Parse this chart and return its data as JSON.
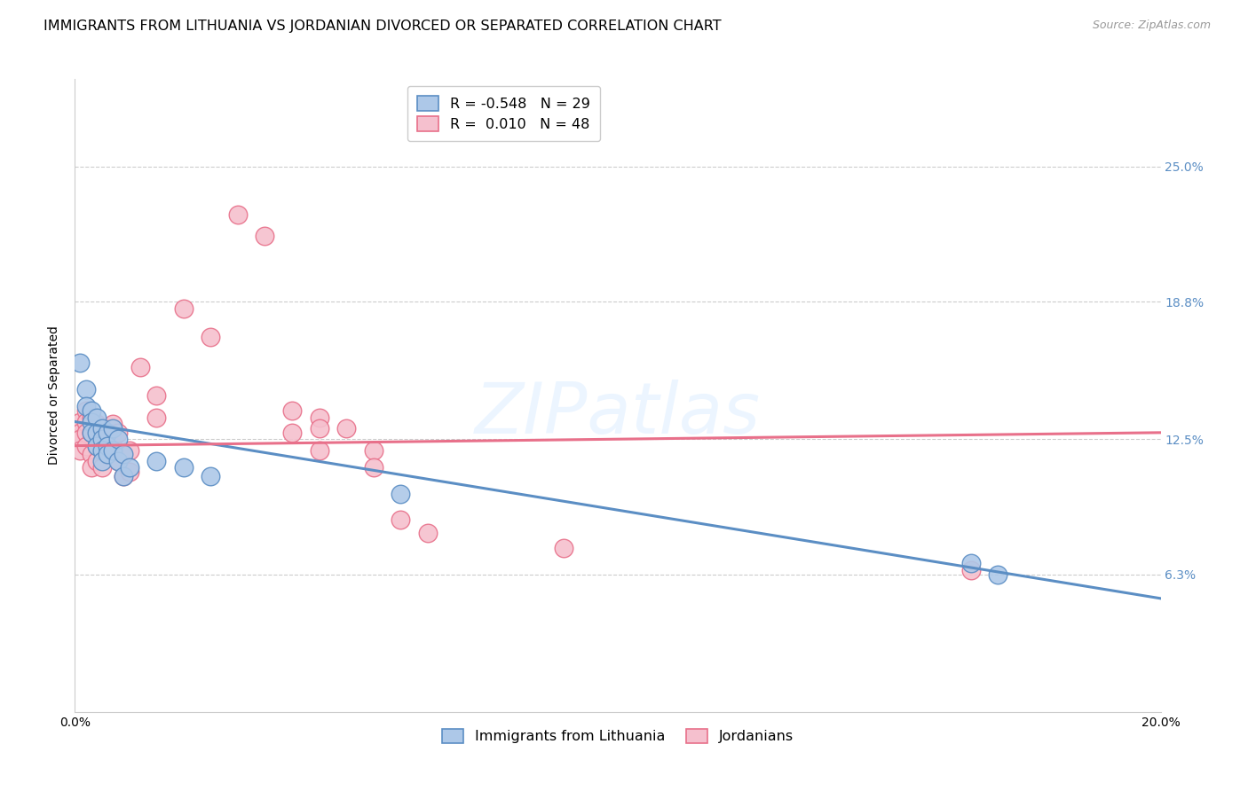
{
  "title": "IMMIGRANTS FROM LITHUANIA VS JORDANIAN DIVORCED OR SEPARATED CORRELATION CHART",
  "source": "Source: ZipAtlas.com",
  "ylabel": "Divorced or Separated",
  "ytick_labels": [
    "6.3%",
    "12.5%",
    "18.8%",
    "25.0%"
  ],
  "ytick_values": [
    0.063,
    0.125,
    0.188,
    0.25
  ],
  "xmin": 0.0,
  "xmax": 0.2,
  "ymin": 0.0,
  "ymax": 0.29,
  "blue_scatter": [
    [
      0.001,
      0.16
    ],
    [
      0.002,
      0.148
    ],
    [
      0.002,
      0.14
    ],
    [
      0.003,
      0.138
    ],
    [
      0.003,
      0.133
    ],
    [
      0.003,
      0.128
    ],
    [
      0.004,
      0.135
    ],
    [
      0.004,
      0.128
    ],
    [
      0.004,
      0.122
    ],
    [
      0.005,
      0.13
    ],
    [
      0.005,
      0.125
    ],
    [
      0.005,
      0.12
    ],
    [
      0.005,
      0.115
    ],
    [
      0.006,
      0.128
    ],
    [
      0.006,
      0.122
    ],
    [
      0.006,
      0.118
    ],
    [
      0.007,
      0.13
    ],
    [
      0.007,
      0.12
    ],
    [
      0.008,
      0.125
    ],
    [
      0.008,
      0.115
    ],
    [
      0.009,
      0.118
    ],
    [
      0.009,
      0.108
    ],
    [
      0.01,
      0.112
    ],
    [
      0.015,
      0.115
    ],
    [
      0.02,
      0.112
    ],
    [
      0.025,
      0.108
    ],
    [
      0.06,
      0.1
    ],
    [
      0.165,
      0.068
    ],
    [
      0.17,
      0.063
    ]
  ],
  "pink_scatter": [
    [
      0.001,
      0.133
    ],
    [
      0.001,
      0.128
    ],
    [
      0.001,
      0.125
    ],
    [
      0.001,
      0.12
    ],
    [
      0.002,
      0.138
    ],
    [
      0.002,
      0.133
    ],
    [
      0.002,
      0.128
    ],
    [
      0.002,
      0.122
    ],
    [
      0.003,
      0.135
    ],
    [
      0.003,
      0.128
    ],
    [
      0.003,
      0.118
    ],
    [
      0.003,
      0.112
    ],
    [
      0.004,
      0.132
    ],
    [
      0.004,
      0.128
    ],
    [
      0.004,
      0.122
    ],
    [
      0.004,
      0.115
    ],
    [
      0.005,
      0.128
    ],
    [
      0.005,
      0.12
    ],
    [
      0.005,
      0.112
    ],
    [
      0.006,
      0.13
    ],
    [
      0.006,
      0.118
    ],
    [
      0.007,
      0.132
    ],
    [
      0.007,
      0.122
    ],
    [
      0.008,
      0.128
    ],
    [
      0.008,
      0.115
    ],
    [
      0.009,
      0.118
    ],
    [
      0.009,
      0.108
    ],
    [
      0.01,
      0.12
    ],
    [
      0.01,
      0.11
    ],
    [
      0.012,
      0.158
    ],
    [
      0.015,
      0.145
    ],
    [
      0.015,
      0.135
    ],
    [
      0.02,
      0.185
    ],
    [
      0.025,
      0.172
    ],
    [
      0.03,
      0.228
    ],
    [
      0.035,
      0.218
    ],
    [
      0.04,
      0.138
    ],
    [
      0.04,
      0.128
    ],
    [
      0.045,
      0.135
    ],
    [
      0.045,
      0.13
    ],
    [
      0.045,
      0.12
    ],
    [
      0.05,
      0.13
    ],
    [
      0.055,
      0.12
    ],
    [
      0.055,
      0.112
    ],
    [
      0.06,
      0.088
    ],
    [
      0.065,
      0.082
    ],
    [
      0.165,
      0.065
    ],
    [
      0.09,
      0.075
    ]
  ],
  "blue_line_x": [
    0.0,
    0.2
  ],
  "blue_line_y": [
    0.133,
    0.052
  ],
  "pink_line_x": [
    0.0,
    0.2
  ],
  "pink_line_y": [
    0.122,
    0.128
  ],
  "blue_color": "#5b8ec4",
  "pink_color": "#e8708a",
  "blue_scatter_color": "#adc8e8",
  "pink_scatter_color": "#f5c0ce",
  "watermark": "ZIPatlas",
  "title_fontsize": 11.5,
  "axis_label_fontsize": 10,
  "tick_fontsize": 10,
  "legend_fontsize": 11.5
}
